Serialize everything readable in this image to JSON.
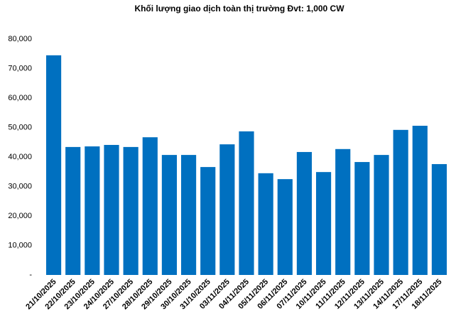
{
  "chart_data": {
    "type": "bar",
    "title": "Khối lượng giao dịch toàn thị trường Đvt: 1,000 CW",
    "categories": [
      "21/10/2025",
      "22/10/2025",
      "23/10/2025",
      "24/10/2025",
      "27/10/2025",
      "28/10/2025",
      "29/10/2025",
      "30/10/2025",
      "31/10/2025",
      "03/11/2025",
      "04/11/2025",
      "05/11/2025",
      "06/11/2025",
      "07/11/2025",
      "10/11/2025",
      "11/11/2025",
      "12/11/2025",
      "13/11/2025",
      "14/11/2025",
      "17/11/2025",
      "18/11/2025"
    ],
    "values": [
      74500,
      43400,
      43600,
      44100,
      43400,
      46700,
      40700,
      40700,
      36600,
      44300,
      48700,
      34500,
      32500,
      41700,
      34900,
      42700,
      38300,
      40700,
      49200,
      50600,
      37600
    ],
    "color": "#0070c0",
    "ylim": [
      0,
      80000
    ],
    "yticks": [
      {
        "value": 0,
        "label": "-"
      },
      {
        "value": 10000,
        "label": "10,000"
      },
      {
        "value": 20000,
        "label": "20,000"
      },
      {
        "value": 30000,
        "label": "30,000"
      },
      {
        "value": 40000,
        "label": "40,000"
      },
      {
        "value": 50000,
        "label": "50,000"
      },
      {
        "value": 60000,
        "label": "60,000"
      },
      {
        "value": 70000,
        "label": "70,000"
      },
      {
        "value": 80000,
        "label": "80,000"
      }
    ],
    "grid": false
  }
}
